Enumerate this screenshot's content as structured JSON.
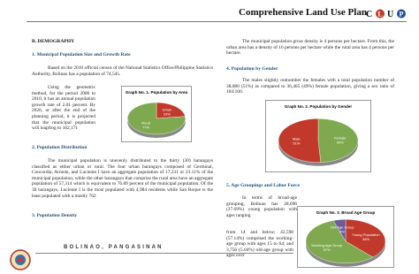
{
  "header": {
    "title": "Comprehensive Land Use Plan",
    "logo_letters": [
      "C",
      "L",
      "U",
      "P"
    ]
  },
  "left": {
    "section": "B. DEMOGRAPHY",
    "heading_1": "1.   Municipal Population Size and Growth Rate",
    "para_1": "Based on the 2010 official census of the National Statistics Office/Philippine Statistics Authority, Bolinao has a population of 74,545.",
    "para_2": "Using the geometric method, for the period 2000 to 2010, it has an annual population growth rate of 2.01 percent. By 2026, or after the end of the planning period, it is projected that the municipal population will leapfrog to 102,171",
    "heading_2": "2.   Population Distribution",
    "para_3": "The municipal population is unevenly distributed to the thirty (30) barangays classified as either urban or rural. The four urban barangays composed of Germinal, Concordia, Arnedo, and Luciente I have an aggregate population of 17,231 or 23.11% of the municipal population, while the other barangays that comprise the rural area have an aggregate population of 57,314 which is equivalent to 76.89 percent of the municipal population. Of the 30 barangays, Luciente I is the most populated with 4,984 residents while San Roque is the least populated with a mostly 762",
    "heading_3": "3.   Population Density"
  },
  "right": {
    "para_1": "The municipal population gross density is 4 persons per hectare. From this, the urban area has a density of 16 persons per hectare while the rural area has 4 persons per hectare.",
    "heading_4": "4.   Population by Gender",
    "para_2": "The males slightly outnumber the females with a total population number of 38,080 (51%) as compared to 36,465 (49%) female population, giving a sex ratio of 104:100.",
    "heading_5": "5.   Age Groupings and Labor Force",
    "para_3a": "In terms of broad-age grouping, Bolinao has 28,096 (37.69%) young population with ages ranging",
    "para_3b": "from 14 and below; 42,598 (57.14%) comprised the working-age group with ages 15 to 64; and 3,756 (5.04%) old-age group with ages over"
  },
  "charts": [
    {
      "type": "pie",
      "title": "Graph No. 1. Population by Area",
      "categories": [
        "Urban",
        "Rural"
      ],
      "values": [
        23,
        77
      ],
      "value_labels": [
        "23%",
        "77%"
      ],
      "colors": [
        "#c0392b",
        "#7ea94e"
      ]
    },
    {
      "type": "pie",
      "title": "Graph No. 2. Population by Gender",
      "categories": [
        "Female",
        "Male"
      ],
      "values": [
        49,
        51
      ],
      "value_labels": [
        "49%",
        "51%"
      ],
      "colors": [
        "#7ea94e",
        "#c0392b"
      ]
    },
    {
      "type": "pie",
      "title": "Graph No. 3. Broad Age Group",
      "categories": [
        "Young Population",
        "Working Age Group",
        "Old-Age Group"
      ],
      "values": [
        38,
        57,
        5
      ],
      "value_labels": [
        "38%",
        "57%",
        "5%"
      ],
      "colors": [
        "#c0392b",
        "#7ea94e",
        "#6a5a9e"
      ]
    }
  ],
  "footer": {
    "place": "BOLINAO, PANGASINAN"
  }
}
